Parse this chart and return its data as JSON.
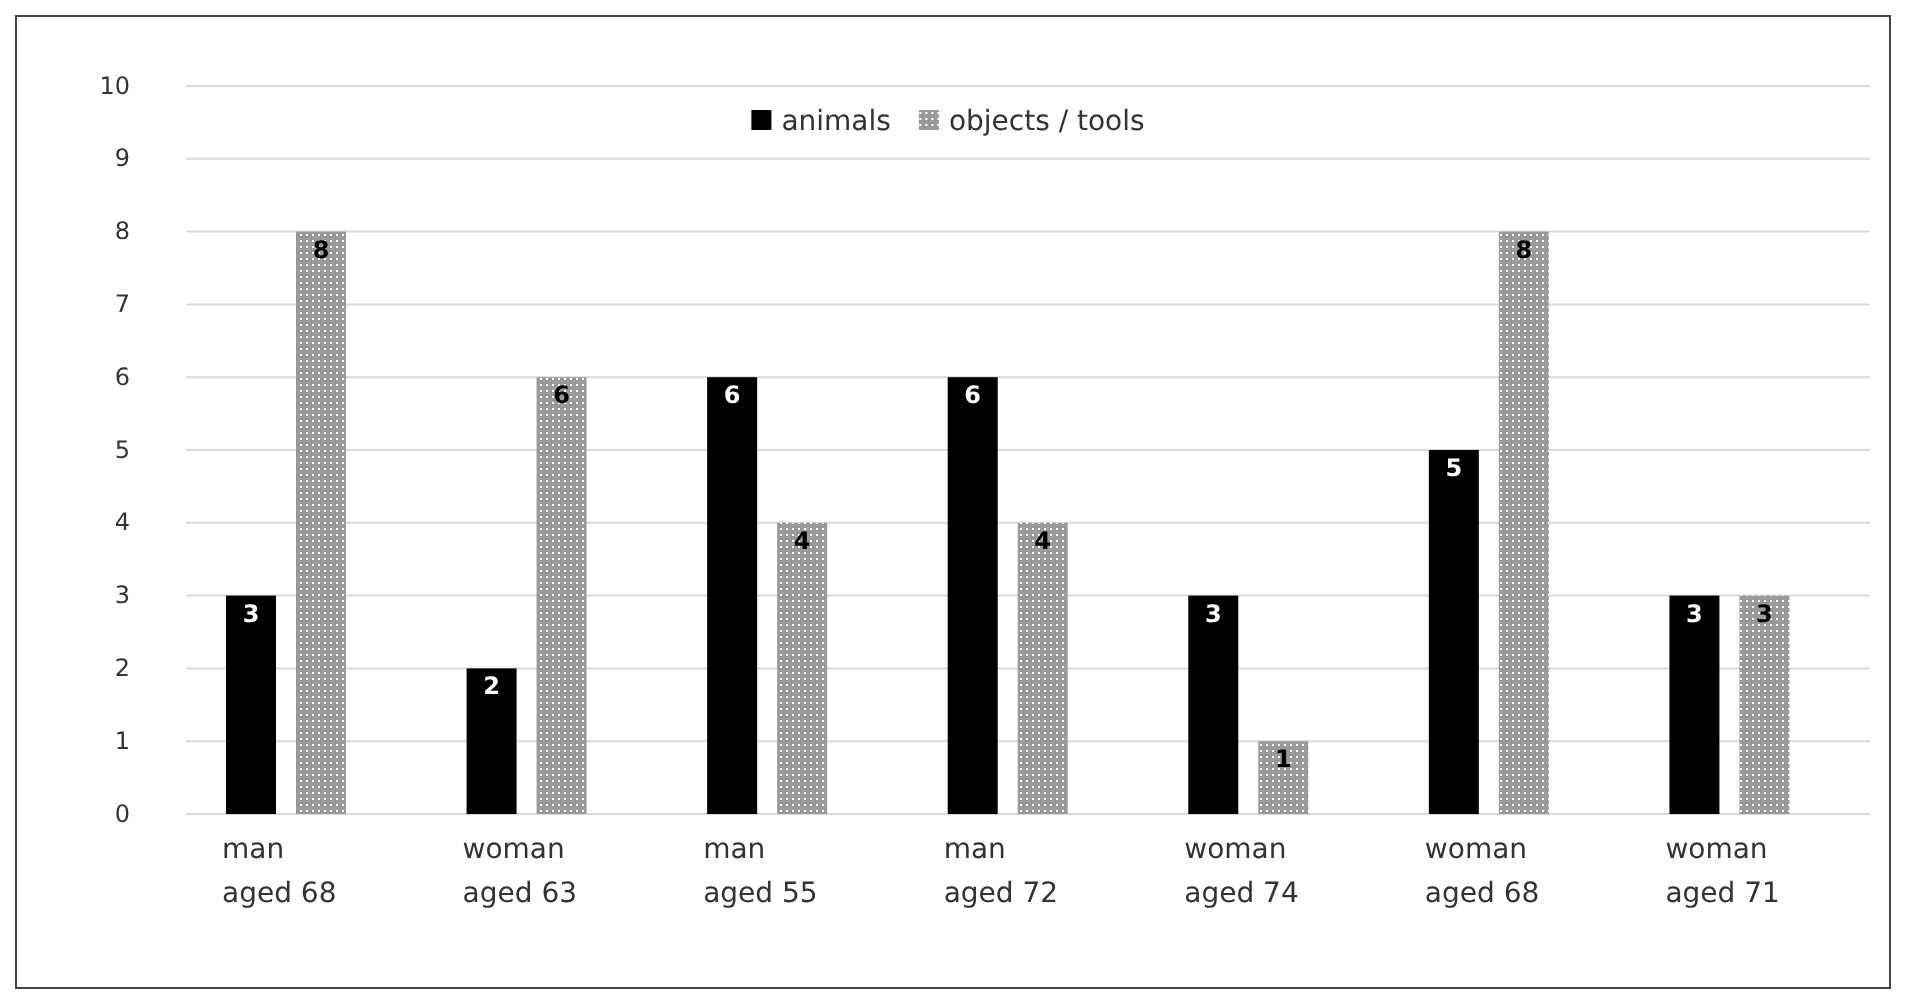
{
  "chart_data": {
    "type": "bar",
    "categories": [
      "man aged 68",
      "woman aged 63",
      "man aged 55",
      "man aged 72",
      "woman aged 74",
      "woman aged 68",
      "woman aged 71"
    ],
    "series": [
      {
        "name": "animals",
        "color": "#000000",
        "values": [
          3,
          2,
          6,
          6,
          3,
          5,
          3
        ]
      },
      {
        "name": "objects / tools",
        "color": "#9a9a9a",
        "values": [
          8,
          6,
          4,
          4,
          1,
          8,
          3
        ]
      }
    ],
    "ylim": [
      0,
      10
    ],
    "yticks": [
      0,
      1,
      2,
      3,
      4,
      5,
      6,
      7,
      8,
      9,
      10
    ],
    "grid": "y",
    "legend": "top",
    "data_labels": true
  }
}
